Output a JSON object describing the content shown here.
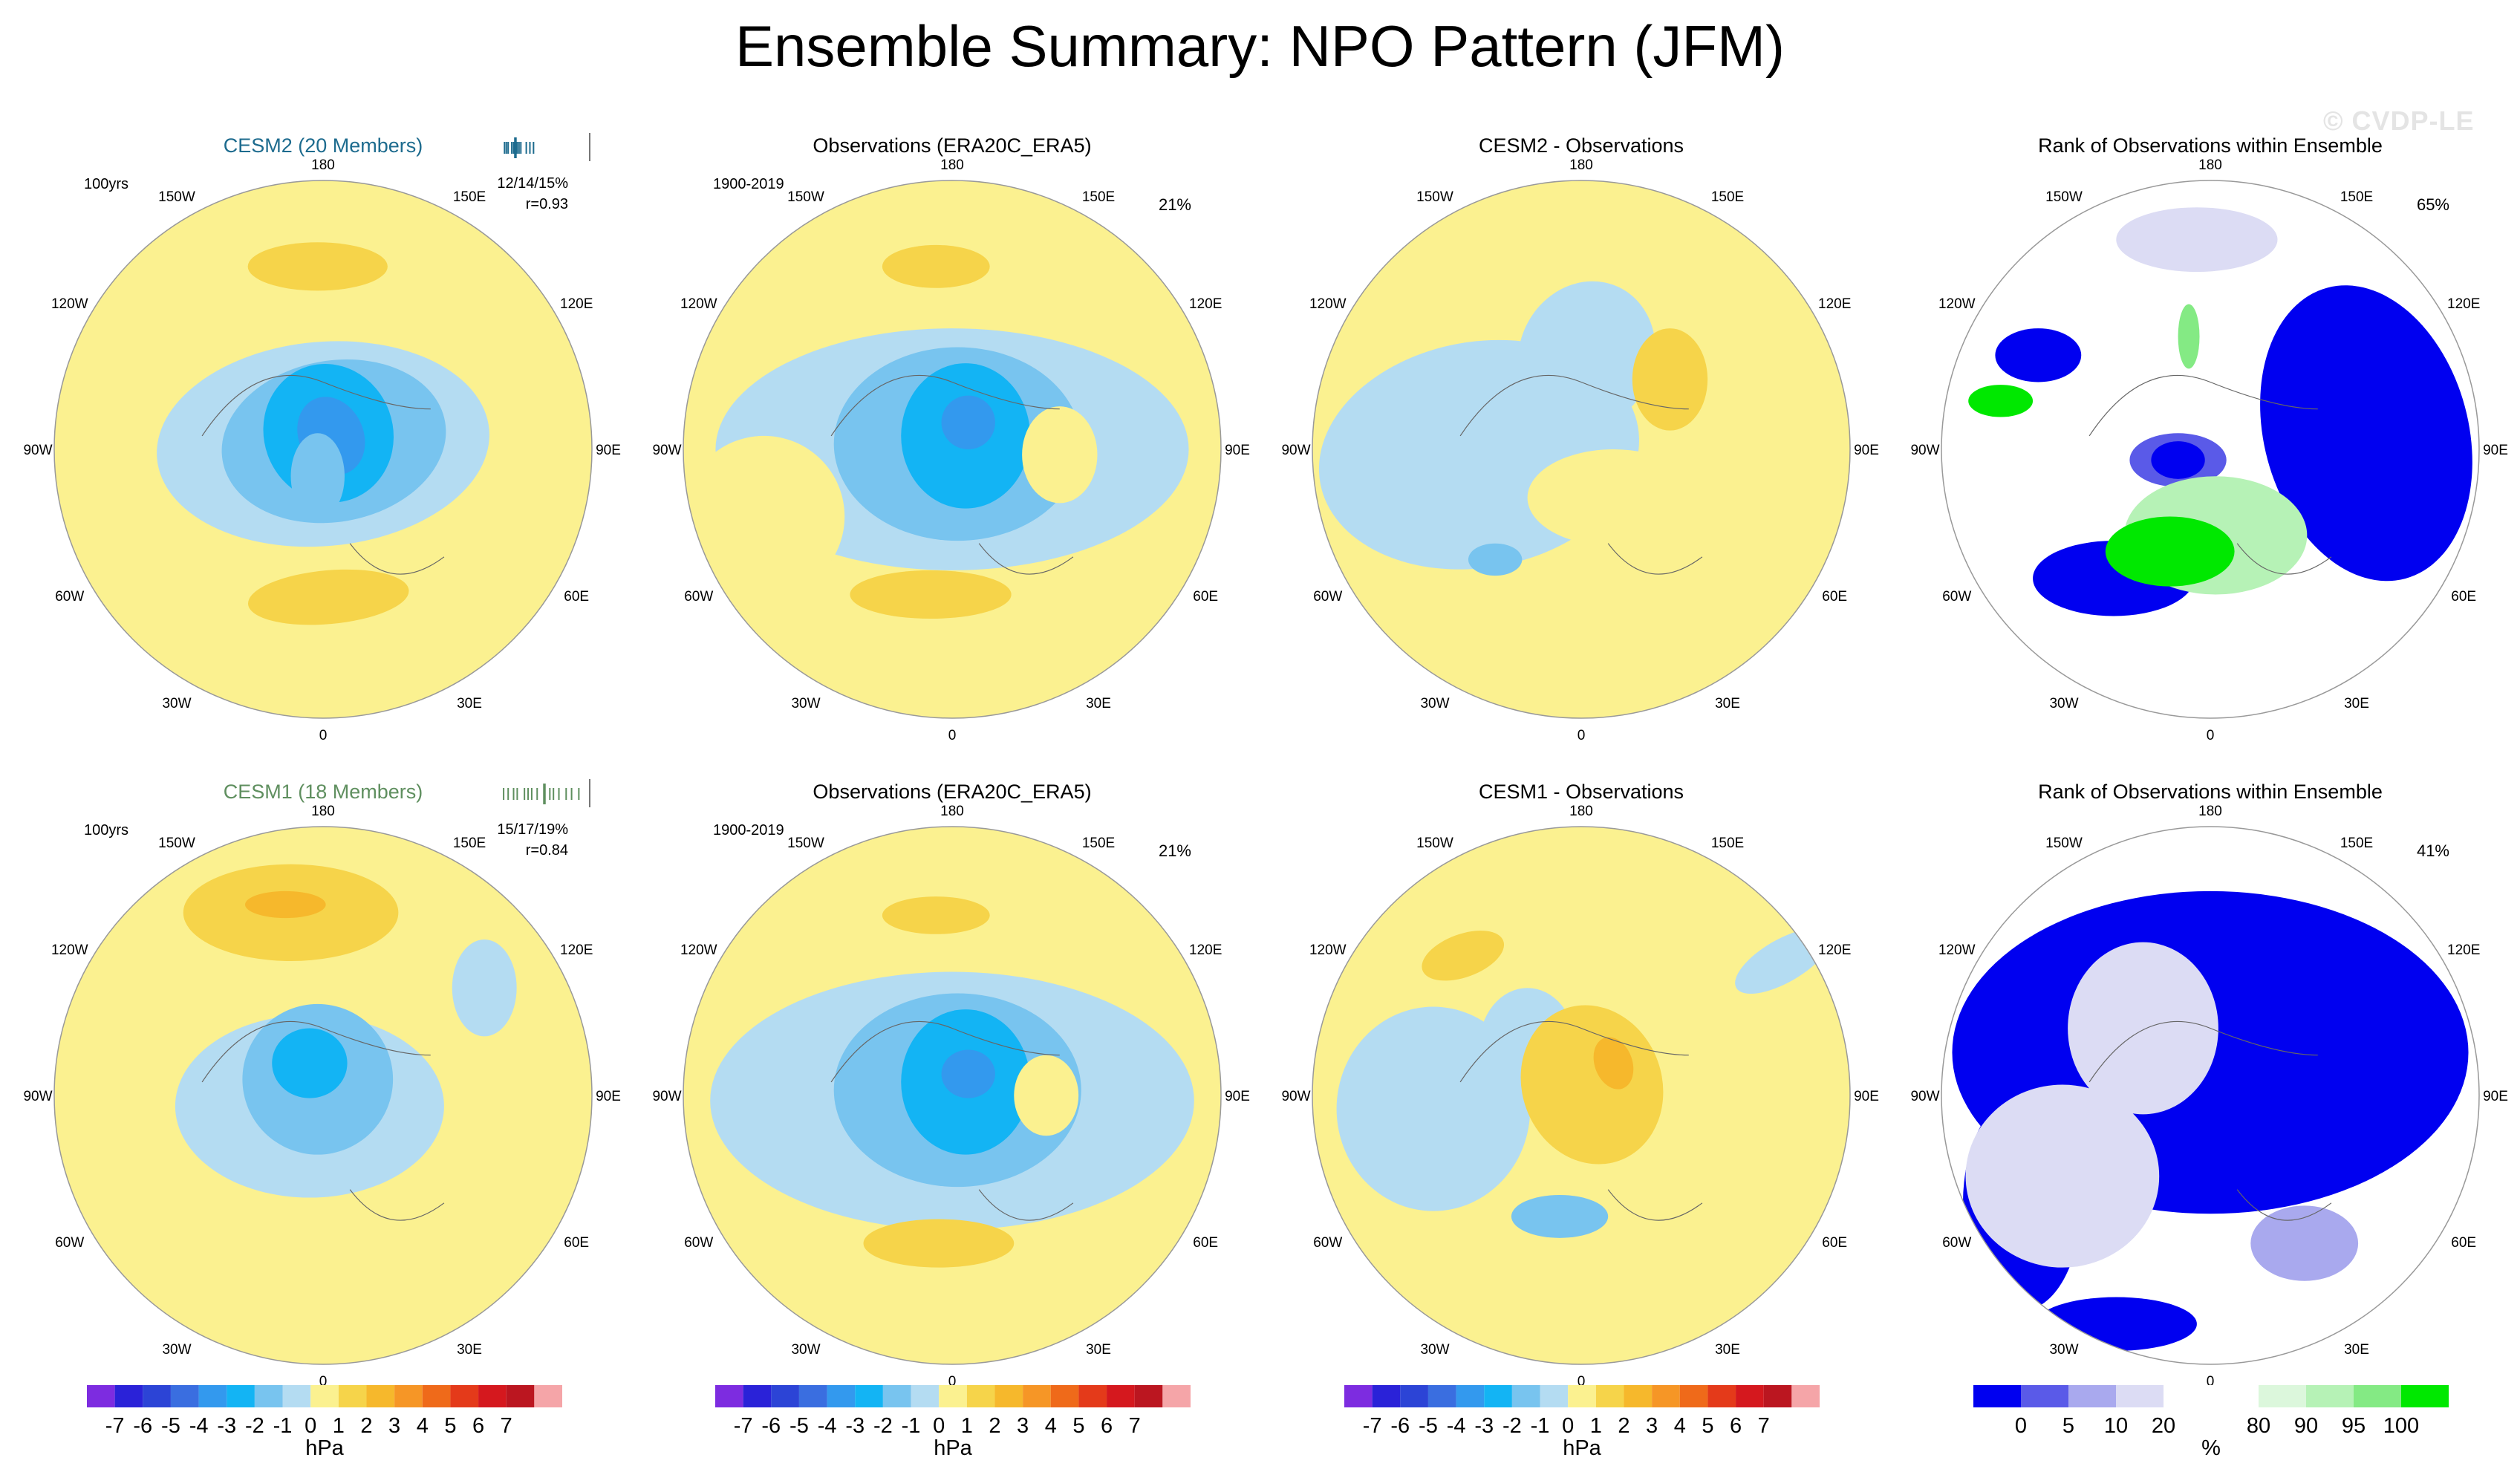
{
  "title": "Ensemble Summary: NPO Pattern (JFM)",
  "watermark": "© CVDP-LE",
  "longitude_labels": [
    "180",
    "150E",
    "120E",
    "90E",
    "60E",
    "30E",
    "0",
    "30W",
    "60W",
    "90W",
    "120W",
    "150W"
  ],
  "colors": {
    "cesm2_title": "#1d6b8e",
    "cesm1_title": "#5f8f5f",
    "ocean_bg": "#fbf190"
  },
  "hpa_colorbar": {
    "unit": "hPa",
    "labels": [
      "-7",
      "-6",
      "-5",
      "-4",
      "-3",
      "-2",
      "-1",
      "0",
      "1",
      "2",
      "3",
      "4",
      "5",
      "6",
      "7"
    ],
    "colors": [
      "#7d2ce0",
      "#2a22d8",
      "#2c44d6",
      "#3a6ee0",
      "#3399ee",
      "#13b4f4",
      "#78c4ef",
      "#b4dcf2",
      "#fbf190",
      "#f6d44a",
      "#f6b82c",
      "#f69626",
      "#ef6a1a",
      "#e43a1a",
      "#d5181e",
      "#bb1620",
      "#f5a5a8"
    ]
  },
  "rank_colorbar": {
    "unit": "%",
    "labels": [
      "0",
      "5",
      "10",
      "20",
      "80",
      "90",
      "95",
      "100"
    ],
    "colors": [
      "#0000f0",
      "#5a5ae8",
      "#a9a9ee",
      "#dcdcf4",
      "#ffffff",
      "#ffffff",
      "#dcf7dc",
      "#b6f2b6",
      "#84ea84",
      "#00e800"
    ]
  },
  "chart_data": [
    {
      "type": "heatmap",
      "panel": "cesm2-pattern",
      "title": "CESM2 (20 Members)",
      "period": "100yrs",
      "stats": "12/14/15%",
      "corr": "r=0.93",
      "percent_rank_ticks": [
        0.06,
        0.08,
        0.1,
        0.14,
        0.16,
        0.18,
        0.2,
        0.22,
        0.24,
        0.3,
        0.34,
        0.38
      ],
      "obs_tick": 0.18,
      "high_tick": 1.0
    },
    {
      "type": "heatmap",
      "panel": "obs-pattern-top",
      "title": "Observations (ERA20C_ERA5)",
      "period": "1900-2019",
      "pct": "21%"
    },
    {
      "type": "heatmap",
      "panel": "cesm2-minus-obs",
      "title": "CESM2 - Observations"
    },
    {
      "type": "heatmap",
      "panel": "rank-top",
      "title": "Rank of Observations within Ensemble",
      "pct": "65%"
    },
    {
      "type": "heatmap",
      "panel": "cesm1-pattern",
      "title": "CESM1 (18 Members)",
      "period": "100yrs",
      "stats": "15/17/19%",
      "corr": "r=0.84",
      "percent_rank_ticks": [
        0.05,
        0.1,
        0.16,
        0.2,
        0.28,
        0.32,
        0.36,
        0.42,
        0.5,
        0.56,
        0.6,
        0.66,
        0.74,
        0.8,
        0.88
      ],
      "obs_tick": 0.5,
      "high_tick": 1.0
    },
    {
      "type": "heatmap",
      "panel": "obs-pattern-bottom",
      "title": "Observations (ERA20C_ERA5)",
      "period": "1900-2019",
      "pct": "21%"
    },
    {
      "type": "heatmap",
      "panel": "cesm1-minus-obs",
      "title": "CESM1 - Observations"
    },
    {
      "type": "heatmap",
      "panel": "rank-bottom",
      "title": "Rank of Observations within Ensemble",
      "pct": "41%"
    }
  ]
}
